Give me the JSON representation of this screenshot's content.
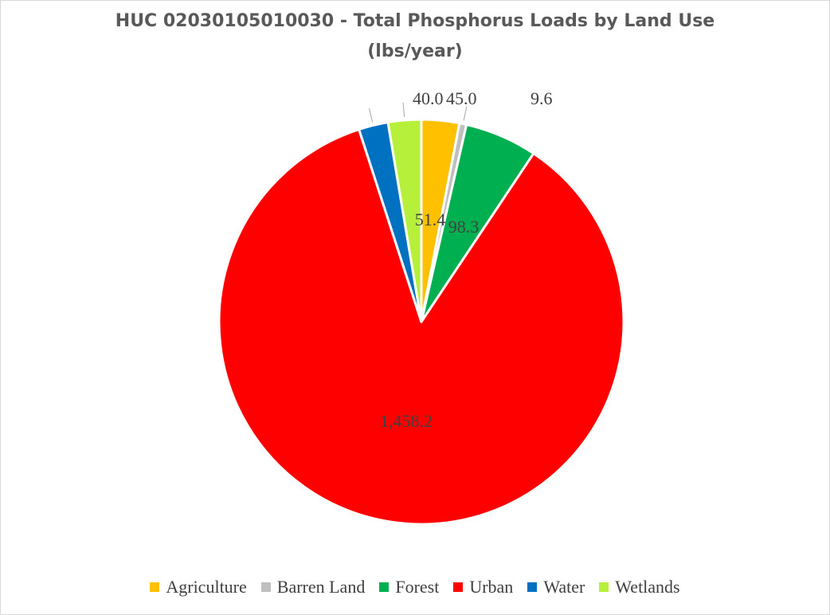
{
  "chart_data": {
    "type": "pie",
    "title": "HUC 02030105010030 - Total Phosphorus Loads by Land Use",
    "subtitle": "(lbs/year)",
    "slices": [
      {
        "name": "Agriculture",
        "value": 51.4,
        "label": "51.4",
        "color": "#FFC000"
      },
      {
        "name": "Barren Land",
        "value": 9.6,
        "label": "9.6",
        "color": "#BFBFBF"
      },
      {
        "name": "Forest",
        "value": 98.3,
        "label": "98.3",
        "color": "#00B050"
      },
      {
        "name": "Urban",
        "value": 1458.2,
        "label": "1,458.2",
        "color": "#FF0000"
      },
      {
        "name": "Water",
        "value": 40.0,
        "label": "40.0",
        "color": "#0070C0"
      },
      {
        "name": "Wetlands",
        "value": 45.0,
        "label": "45.0",
        "color": "#B6F03A"
      }
    ],
    "legend_position": "bottom"
  }
}
